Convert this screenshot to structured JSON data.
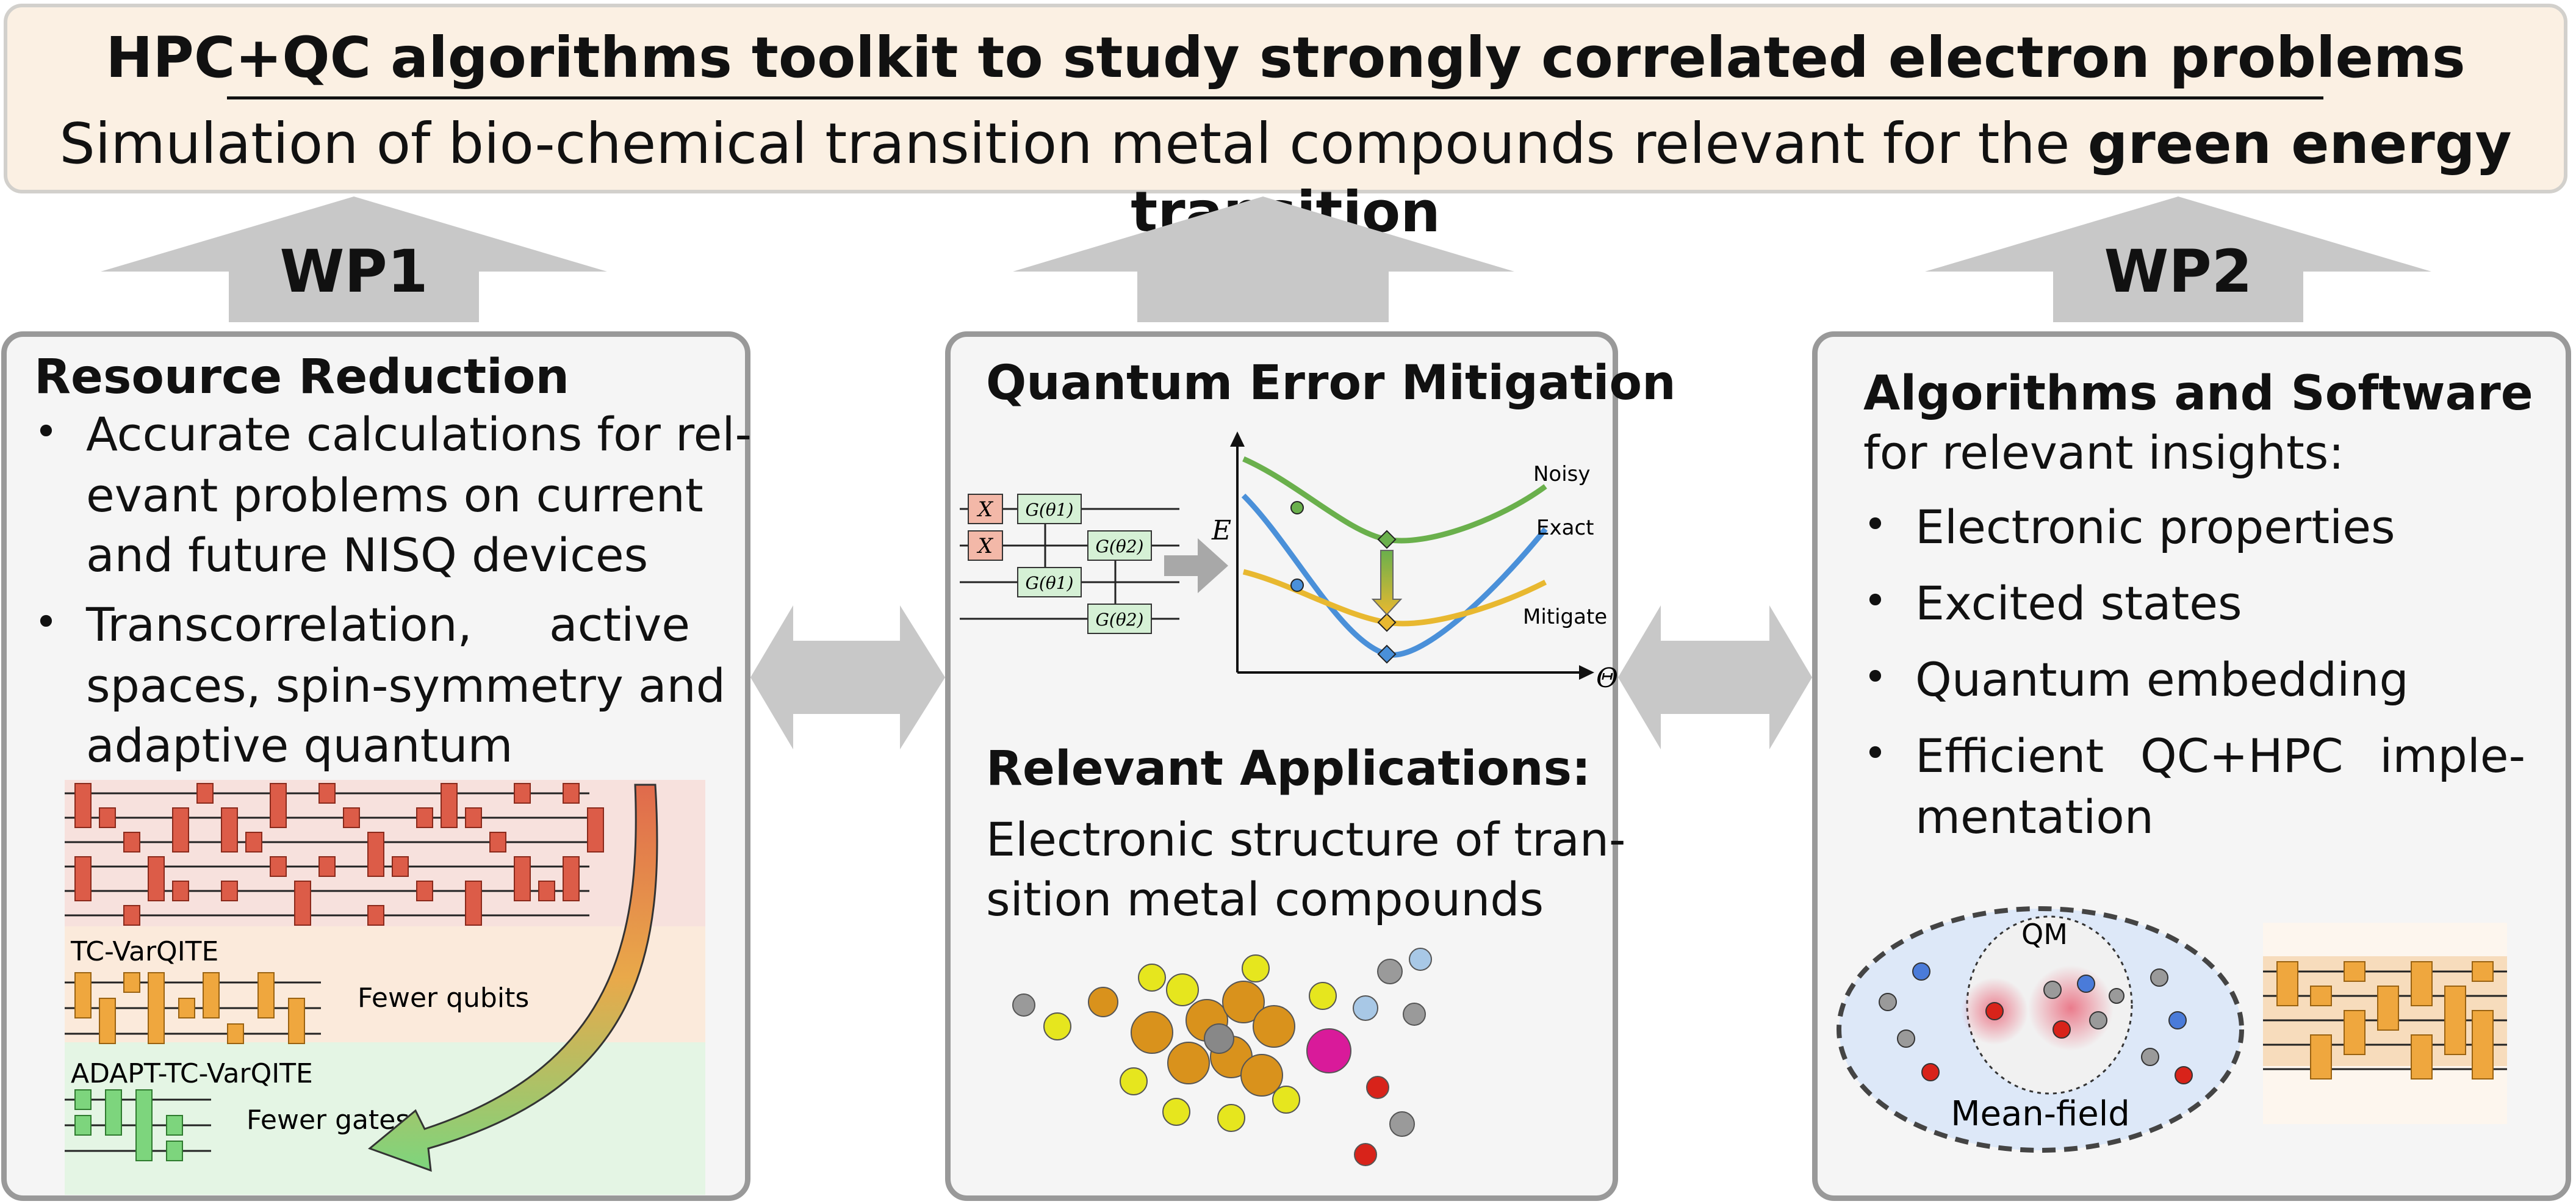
{
  "banner": {
    "title": "HPC+QC algorithms toolkit to study strongly correlated electron problems",
    "subtitle_pre": "Simulation of bio-chemical transition metal compounds relevant for the ",
    "subtitle_bold": "green energy transition"
  },
  "wp_labels": {
    "left": "WP1",
    "right": "WP2"
  },
  "left_panel": {
    "heading": "Resource Reduction",
    "bullet_1": [
      "Accurate calculations for rel-",
      "evant problems on current",
      "and future NISQ devices"
    ],
    "bullet_2": [
      "Transcorrelation, active",
      "spaces, spin-symmetry and",
      "adaptive quantum Ansätze"
    ],
    "circuit_labels": {
      "tc": "TC-VarQITE",
      "adapt": "ADAPT-TC-VarQITE",
      "fewer_qubits": "Fewer qubits",
      "fewer_gates": "Fewer gates"
    }
  },
  "mid_panel": {
    "heading": "Quantum Error Mitigation",
    "plot": {
      "y_label": "E",
      "x_label": "Θ",
      "noisy": "Noisy",
      "exact": "Exact",
      "mitigate": "Mitigate"
    },
    "gates": {
      "x": "X",
      "g1": "G(θ1)",
      "g2": "G(θ2)"
    },
    "apps_heading": "Relevant Applications:",
    "apps_text": [
      "Electronic structure of tran-",
      "sition metal compounds"
    ]
  },
  "right_panel": {
    "heading": "Algorithms and Software",
    "subheading": "for relevant insights:",
    "items": [
      "Electronic properties",
      "Excited states",
      "Quantum embedding"
    ],
    "item_4": [
      "Efficient QC+HPC imple-",
      "mentation"
    ],
    "embedding": {
      "qm": "QM",
      "mean_field": "Mean-field"
    }
  },
  "colors": {
    "banner_bg": "#fbf0e3",
    "panel_border": "#999999",
    "arrow_gray": "#c8c8c8",
    "gate_red": "#dc5c48",
    "gate_orange": "#efa73e",
    "gate_green": "#7dd57d",
    "noisy_curve": "#6ab04c",
    "exact_curve": "#4a90d9",
    "mitigate_curve": "#e8b830"
  }
}
